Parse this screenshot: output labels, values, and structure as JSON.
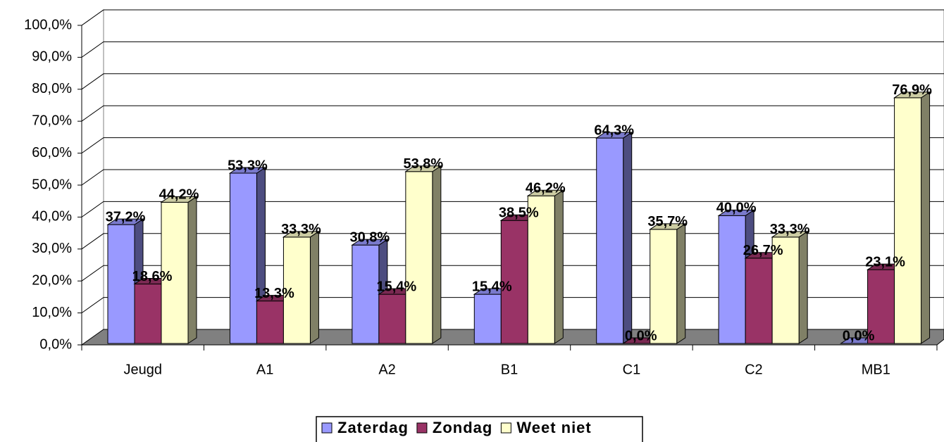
{
  "chart_data": {
    "type": "bar3d",
    "categories": [
      "Jeugd",
      "A1",
      "A2",
      "B1",
      "C1",
      "C2",
      "MB1"
    ],
    "series": [
      {
        "name": "Zaterdag",
        "color": "#9999ff",
        "values": [
          37.2,
          53.3,
          30.8,
          15.4,
          64.3,
          40.0,
          0.0
        ],
        "value_labels": [
          "37,2%",
          "53,3%",
          "30,8%",
          "15,4%",
          "64,3%",
          "40,0%",
          "0,0%"
        ]
      },
      {
        "name": "Zondag",
        "color": "#993366",
        "values": [
          18.6,
          13.3,
          15.4,
          38.5,
          0.0,
          26.7,
          23.1
        ],
        "value_labels": [
          "18,6%",
          "13,3%",
          "15,4%",
          "38,5%",
          "0,0%",
          "26,7%",
          "23,1%"
        ]
      },
      {
        "name": "Weet niet",
        "color": "#ffffcc",
        "values": [
          44.2,
          33.3,
          53.8,
          46.2,
          35.7,
          33.3,
          76.9
        ],
        "value_labels": [
          "44,2%",
          "33,3%",
          "53,8%",
          "46,2%",
          "35,7%",
          "33,3%",
          "76,9%"
        ]
      }
    ],
    "ylim": [
      0,
      100
    ],
    "yticks": [
      {
        "value": 0,
        "label": "0,0%"
      },
      {
        "value": 10,
        "label": "10,0%"
      },
      {
        "value": 20,
        "label": "20,0%"
      },
      {
        "value": 30,
        "label": "30,0%"
      },
      {
        "value": 40,
        "label": "40,0%"
      },
      {
        "value": 50,
        "label": "50,0%"
      },
      {
        "value": 60,
        "label": "60,0%"
      },
      {
        "value": 70,
        "label": "70,0%"
      },
      {
        "value": 80,
        "label": "80,0%"
      },
      {
        "value": 90,
        "label": "90,0%"
      },
      {
        "value": 100,
        "label": "100,0%"
      }
    ],
    "grid": true,
    "legend": "bottom"
  }
}
